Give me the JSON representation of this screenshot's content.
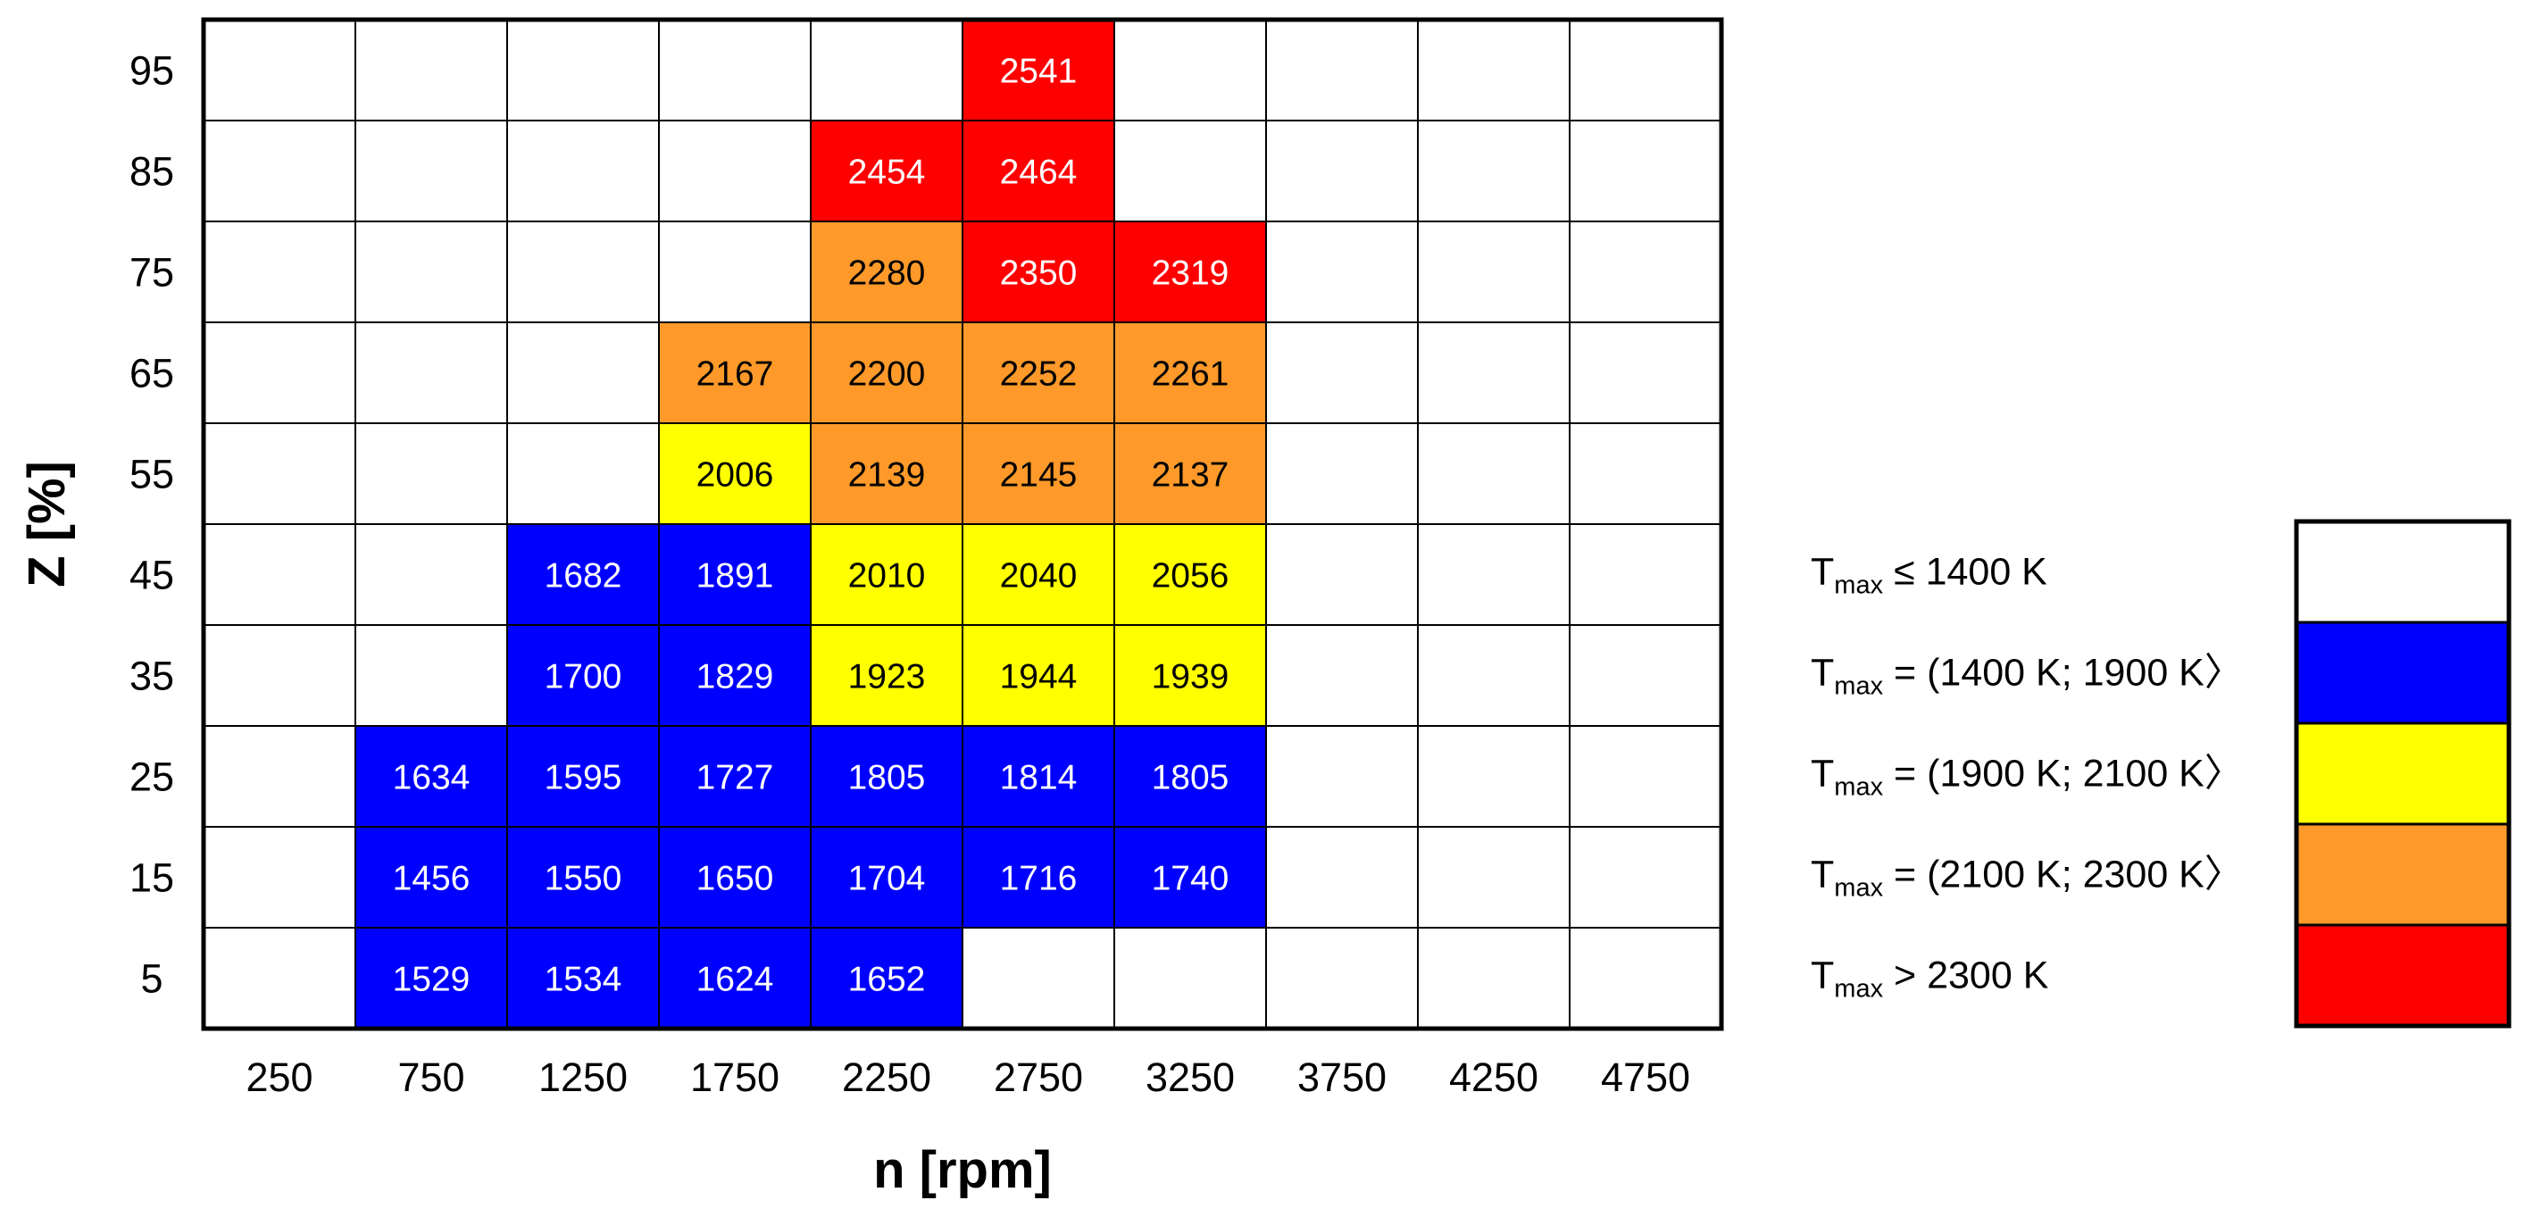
{
  "chart_data": {
    "type": "heatmap",
    "xlabel": "n [rpm]",
    "ylabel": "Z [%]",
    "x": [
      "250",
      "750",
      "1250",
      "1750",
      "2250",
      "2750",
      "3250",
      "3750",
      "4250",
      "4750"
    ],
    "y": [
      "95",
      "85",
      "75",
      "65",
      "55",
      "45",
      "35",
      "25",
      "15",
      "5"
    ],
    "values": [
      [
        null,
        null,
        null,
        null,
        null,
        2541,
        null,
        null,
        null,
        null
      ],
      [
        null,
        null,
        null,
        null,
        2454,
        2464,
        null,
        null,
        null,
        null
      ],
      [
        null,
        null,
        null,
        null,
        2280,
        2350,
        2319,
        null,
        null,
        null
      ],
      [
        null,
        null,
        null,
        2167,
        2200,
        2252,
        2261,
        null,
        null,
        null
      ],
      [
        null,
        null,
        null,
        2006,
        2139,
        2145,
        2137,
        null,
        null,
        null
      ],
      [
        null,
        null,
        1682,
        1891,
        2010,
        2040,
        2056,
        null,
        null,
        null
      ],
      [
        null,
        null,
        1700,
        1829,
        1923,
        1944,
        1939,
        null,
        null,
        null
      ],
      [
        null,
        1634,
        1595,
        1727,
        1805,
        1814,
        1805,
        null,
        null,
        null
      ],
      [
        null,
        1456,
        1550,
        1650,
        1704,
        1716,
        1740,
        null,
        null,
        null
      ],
      [
        null,
        1529,
        1534,
        1624,
        1652,
        null,
        null,
        null,
        null,
        null
      ]
    ],
    "legend": [
      {
        "label_main": "T",
        "label_sub": "max",
        "label_rest": " ≤ 1400 K",
        "color": "#ffffff"
      },
      {
        "label_main": "T",
        "label_sub": "max",
        "label_rest": " = (1400 K; 1900 K〉",
        "color": "#0000ff"
      },
      {
        "label_main": "T",
        "label_sub": "max",
        "label_rest": " = (1900 K; 2100 K〉",
        "color": "#ffff00"
      },
      {
        "label_main": "T",
        "label_sub": "max",
        "label_rest": " = (2100 K; 2300 K〉",
        "color": "#ff9a2a"
      },
      {
        "label_main": "T",
        "label_sub": "max",
        "label_rest": " > 2300 K",
        "color": "#ff0000"
      }
    ],
    "bins": {
      "thresholds": [
        1400,
        1900,
        2100,
        2300
      ],
      "colors": [
        "#ffffff",
        "#0000ff",
        "#ffff00",
        "#ff9a2a",
        "#ff0000"
      ],
      "text_colors": [
        "#000000",
        "#ffffff",
        "#000000",
        "#000000",
        "#ffffff"
      ]
    },
    "legend_placement": "right"
  }
}
